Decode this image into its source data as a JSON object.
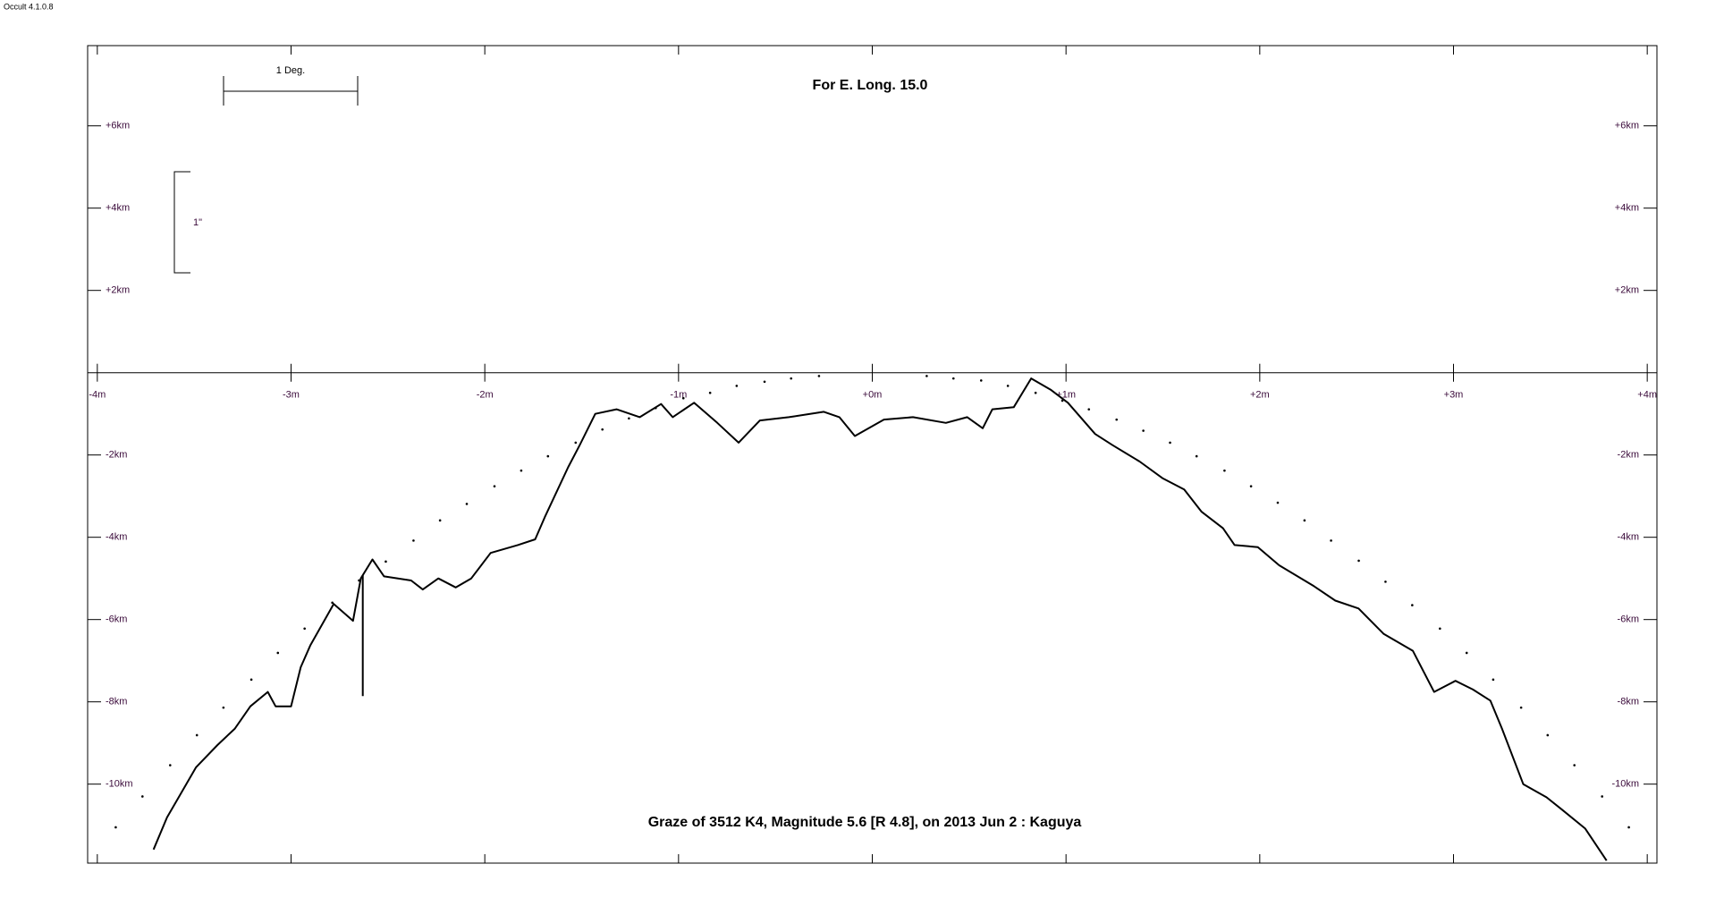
{
  "app_label": "Occult 4.1.0.8",
  "chart_data": {
    "type": "line",
    "title": "For E. Long. 15.0",
    "subtitle": "Graze of  3512 K4,  Magnitude 5.6 [R 4.8],  on 2013 Jun  2  :  Kaguya",
    "annotations": [
      "1 Deg.",
      "1\""
    ],
    "xlim": [
      -4.05,
      4.05
    ],
    "ylim": [
      -11.92,
      7.95
    ],
    "xticks": [
      {
        "value": -4,
        "label": "-4m"
      },
      {
        "value": -3,
        "label": "-3m"
      },
      {
        "value": -2,
        "label": "-2m"
      },
      {
        "value": -1,
        "label": "-1m"
      },
      {
        "value": 0,
        "label": "+0m"
      },
      {
        "value": 1,
        "label": "+1m"
      },
      {
        "value": 2,
        "label": "+2m"
      },
      {
        "value": 3,
        "label": "+3m"
      },
      {
        "value": 4,
        "label": "+4m"
      }
    ],
    "yticks": [
      {
        "value": 6,
        "label": "+6km"
      },
      {
        "value": 4,
        "label": "+4km"
      },
      {
        "value": 2,
        "label": "+2km"
      },
      {
        "value": -2,
        "label": "-2km"
      },
      {
        "value": -4,
        "label": "-4km"
      },
      {
        "value": -6,
        "label": "-6km"
      },
      {
        "value": -8,
        "label": "-8km"
      },
      {
        "value": -10,
        "label": "-10km"
      }
    ],
    "series": [
      {
        "color": "#000000",
        "style": "line",
        "x": [
          -3.71,
          -3.64,
          -3.49,
          -3.38,
          -3.29,
          -3.21,
          -3.12,
          -3.08,
          -3.0,
          -2.95,
          -2.9,
          -2.78,
          -2.68,
          -2.64,
          -2.58,
          -2.52,
          -2.38,
          -2.32,
          -2.24,
          -2.15,
          -2.07,
          -1.97,
          -1.83,
          -1.74,
          -1.69,
          -1.57,
          -1.51,
          -1.43,
          -1.32,
          -1.2,
          -1.09,
          -1.03,
          -0.92,
          -0.8,
          -0.69,
          -0.58,
          -0.43,
          -0.25,
          -0.17,
          -0.09,
          0.06,
          0.21,
          0.38,
          0.49,
          0.57,
          0.62,
          0.73,
          0.82,
          0.92,
          1.01,
          1.15,
          1.24,
          1.38,
          1.5,
          1.61,
          1.7,
          1.81,
          1.87,
          1.99,
          2.1,
          2.28,
          2.39,
          2.51,
          2.64,
          2.79,
          2.9,
          3.01,
          3.1,
          3.19,
          3.25,
          3.36,
          3.48,
          3.56,
          3.68,
          3.79
        ],
        "values": [
          -11.59,
          -10.81,
          -9.59,
          -9.05,
          -8.65,
          -8.11,
          -7.76,
          -8.11,
          -8.11,
          -7.16,
          -6.62,
          -5.62,
          -6.03,
          -5.0,
          -4.54,
          -4.95,
          -5.05,
          -5.27,
          -5.0,
          -5.22,
          -5.0,
          -4.38,
          -4.19,
          -4.05,
          -3.51,
          -2.3,
          -1.76,
          -1.0,
          -0.89,
          -1.08,
          -0.76,
          -1.08,
          -0.73,
          -1.22,
          -1.7,
          -1.16,
          -1.08,
          -0.95,
          -1.08,
          -1.54,
          -1.14,
          -1.08,
          -1.22,
          -1.08,
          -1.35,
          -0.89,
          -0.84,
          -0.14,
          -0.41,
          -0.73,
          -1.49,
          -1.76,
          -2.16,
          -2.57,
          -2.84,
          -3.38,
          -3.78,
          -4.19,
          -4.24,
          -4.68,
          -5.19,
          -5.54,
          -5.73,
          -6.35,
          -6.76,
          -7.76,
          -7.49,
          -7.7,
          -7.97,
          -8.65,
          -10.0,
          -10.32,
          -10.62,
          -11.08,
          -11.86
        ]
      },
      {
        "color": "#000000",
        "style": "line",
        "x": [
          -2.63,
          -2.63
        ],
        "values": [
          -4.92,
          -7.86
        ]
      },
      {
        "color": "#000000",
        "style": "dots",
        "x": [
          -3.905,
          -3.767,
          -3.624,
          -3.486,
          -3.349,
          -3.205,
          -3.068,
          -2.93,
          -2.787,
          -2.649,
          -2.511,
          -2.368,
          -2.231,
          -2.093,
          -1.95,
          -1.812,
          -1.674,
          -1.531,
          -1.393,
          -1.256,
          -1.118,
          -0.975,
          -0.837,
          -0.7,
          -0.556,
          -0.419,
          -0.275,
          0.281,
          0.419,
          0.562,
          0.7,
          0.843,
          0.981,
          1.118,
          1.261,
          1.399,
          1.537,
          1.674,
          1.818,
          1.955,
          2.093,
          2.231,
          2.368,
          2.511,
          2.649,
          2.787,
          2.93,
          3.068,
          3.205,
          3.349,
          3.486,
          3.624,
          3.767,
          3.905
        ],
        "values": [
          -11.05,
          -10.3,
          -9.54,
          -8.81,
          -8.14,
          -7.46,
          -6.81,
          -6.22,
          -5.59,
          -5.05,
          -4.59,
          -4.08,
          -3.59,
          -3.19,
          -2.76,
          -2.38,
          -2.03,
          -1.7,
          -1.38,
          -1.11,
          -0.86,
          -0.62,
          -0.49,
          -0.32,
          -0.22,
          -0.14,
          -0.08,
          -0.08,
          -0.14,
          -0.19,
          -0.32,
          -0.49,
          -0.68,
          -0.89,
          -1.14,
          -1.41,
          -1.7,
          -2.03,
          -2.38,
          -2.76,
          -3.16,
          -3.59,
          -4.08,
          -4.57,
          -5.08,
          -5.65,
          -6.22,
          -6.81,
          -7.46,
          -8.14,
          -8.81,
          -9.54,
          -10.3,
          -11.05
        ]
      }
    ]
  }
}
